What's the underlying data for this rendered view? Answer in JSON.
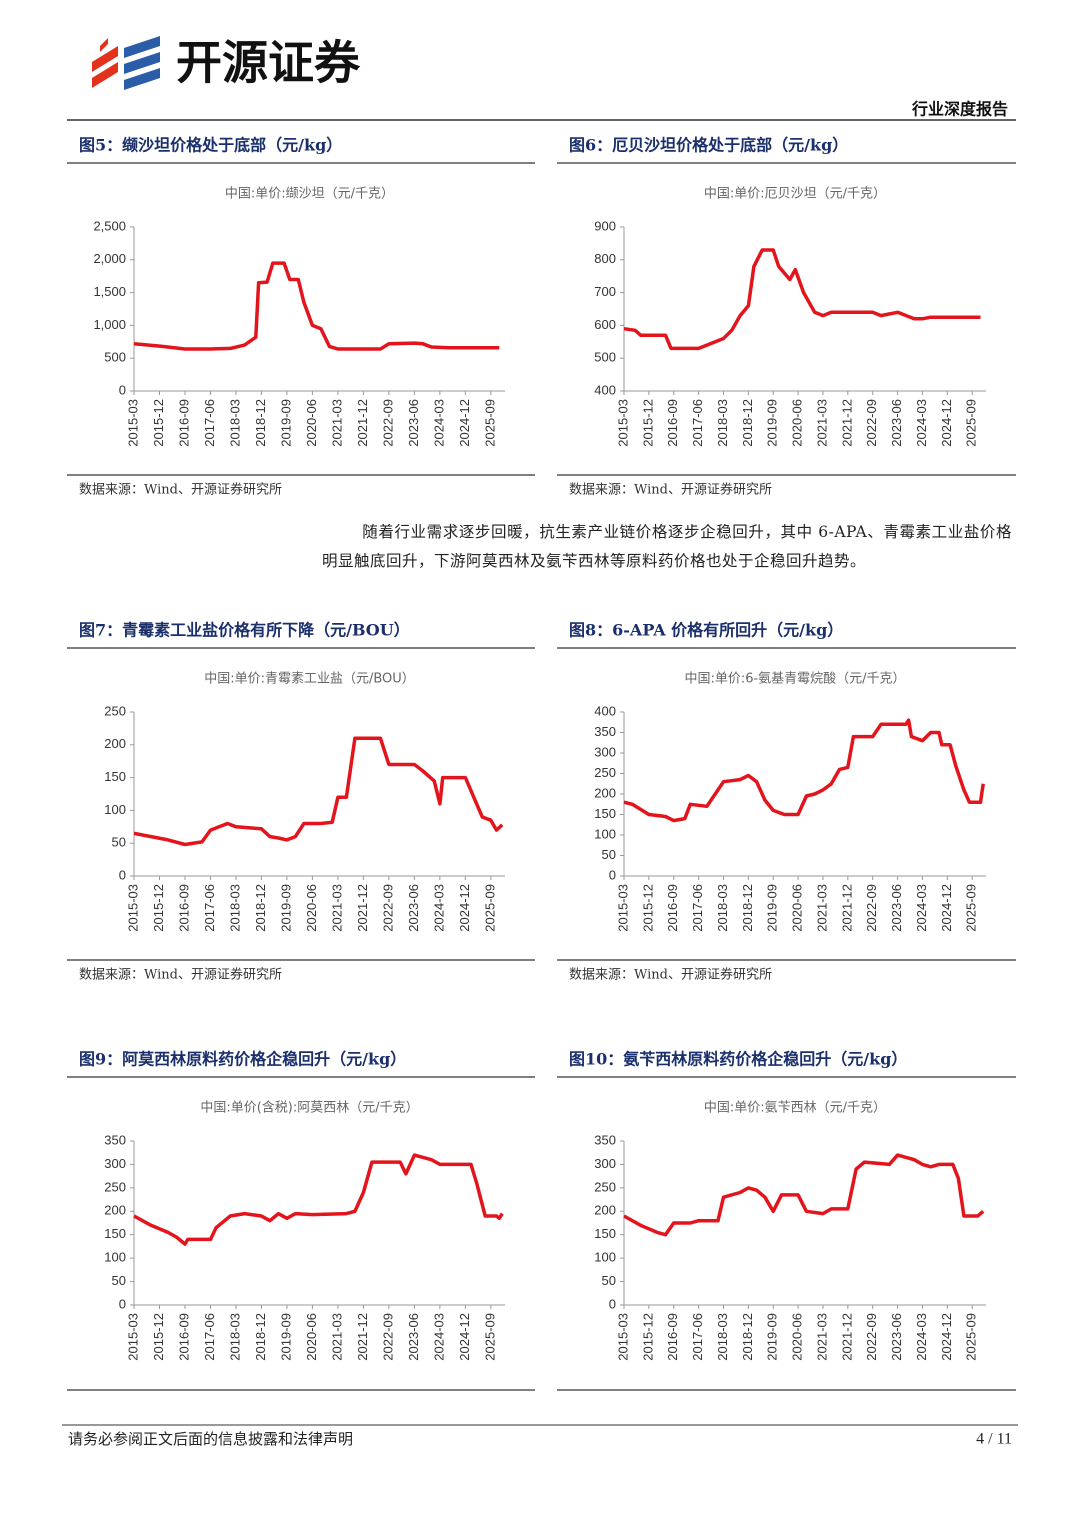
{
  "header": {
    "brand": "开源证券",
    "report_type": "行业深度报告"
  },
  "paragraph": "随着行业需求逐步回暖，抗生素产业链价格逐步企稳回升，其中 6-APA、青霉素工业盐价格明显触底回升，下游阿莫西林及氨苄西林等原料药价格也处于企稳回升趋势。",
  "footer": {
    "disclaimer": "请务必参阅正文后面的信息披露和法律声明",
    "page": "4 / 11"
  },
  "chart_data": [
    {
      "type": "line",
      "caption": "图5：缬沙坦价格处于底部（元/kg）",
      "title": "中国:单价:缬沙坦（元/千克）",
      "source": "数据来源：Wind、开源证券研究所",
      "color": "#e3141c",
      "x": [
        "2015-03",
        "2016-01",
        "2016-09",
        "2017-06",
        "2018-01",
        "2018-06",
        "2018-10",
        "2018-11",
        "2019-02",
        "2019-04",
        "2019-08",
        "2019-10",
        "2020-01",
        "2020-03",
        "2020-06",
        "2020-09",
        "2020-12",
        "2021-03",
        "2022-06",
        "2022-09",
        "2023-06",
        "2023-09",
        "2023-12",
        "2024-06",
        "2025-12"
      ],
      "values": [
        720,
        680,
        640,
        640,
        650,
        700,
        820,
        1650,
        1660,
        1950,
        1950,
        1700,
        1700,
        1350,
        1000,
        950,
        680,
        640,
        640,
        720,
        730,
        720,
        670,
        660,
        660
      ],
      "xlim": [
        "2015-03",
        "2026-02"
      ],
      "xticks": [
        "2015-03",
        "2015-12",
        "2016-09",
        "2017-06",
        "2018-03",
        "2018-12",
        "2019-09",
        "2020-06",
        "2021-03",
        "2021-12",
        "2022-09",
        "2023-06",
        "2024-03",
        "2024-12",
        "2025-09"
      ],
      "ylim": [
        0,
        2500
      ],
      "yticks": [
        0,
        500,
        {
          "value": 1000,
          "label": "1,000"
        },
        {
          "value": 1500,
          "label": "1,500"
        },
        {
          "value": 2000,
          "label": "2,000"
        },
        {
          "value": 2500,
          "label": "2,500"
        }
      ]
    },
    {
      "type": "line",
      "caption": "图6：厄贝沙坦价格处于底部（元/kg）",
      "title": "中国:单价:厄贝沙坦（元/千克）",
      "source": "数据来源：Wind、开源证券研究所",
      "color": "#e3141c",
      "x": [
        "2015-03",
        "2015-07",
        "2015-09",
        "2016-06",
        "2016-08",
        "2017-06",
        "2017-09",
        "2018-03",
        "2018-06",
        "2018-09",
        "2018-12",
        "2019-02",
        "2019-05",
        "2019-09",
        "2019-11",
        "2020-03",
        "2020-05",
        "2020-08",
        "2020-12",
        "2021-03",
        "2021-06",
        "2022-09",
        "2022-12",
        "2023-06",
        "2023-12",
        "2024-03",
        "2024-06",
        "2025-12"
      ],
      "values": [
        590,
        585,
        570,
        570,
        530,
        530,
        540,
        560,
        585,
        630,
        660,
        780,
        830,
        830,
        780,
        740,
        770,
        700,
        640,
        630,
        640,
        640,
        630,
        640,
        620,
        620,
        625,
        625
      ],
      "xlim": [
        "2015-03",
        "2026-02"
      ],
      "xticks": [
        "2015-03",
        "2015-12",
        "2016-09",
        "2017-06",
        "2018-03",
        "2018-12",
        "2019-09",
        "2020-06",
        "2021-03",
        "2021-12",
        "2022-09",
        "2023-06",
        "2024-03",
        "2024-12",
        "2025-09"
      ],
      "ylim": [
        400,
        900
      ],
      "yticks": [
        400,
        500,
        600,
        700,
        800,
        900
      ]
    },
    {
      "type": "line",
      "caption": "图7：青霉素工业盐价格有所下降（元/BOU）",
      "title": "中国:单价:青霉素工业盐（元/BOU）",
      "source": "数据来源：Wind、开源证券研究所",
      "color": "#e3141c",
      "x": [
        "2015-03",
        "2015-09",
        "2016-03",
        "2016-09",
        "2017-03",
        "2017-06",
        "2017-12",
        "2018-03",
        "2018-12",
        "2019-03",
        "2019-06",
        "2019-09",
        "2019-12",
        "2020-03",
        "2020-09",
        "2021-01",
        "2021-03",
        "2021-06",
        "2021-09",
        "2022-06",
        "2022-09",
        "2023-06",
        "2023-09",
        "2024-01",
        "2024-03",
        "2024-04",
        "2024-12",
        "2025-03",
        "2025-06",
        "2025-09",
        "2025-11",
        "2026-01"
      ],
      "values": [
        65,
        60,
        55,
        48,
        52,
        70,
        80,
        75,
        72,
        60,
        58,
        55,
        60,
        80,
        80,
        82,
        120,
        120,
        210,
        210,
        170,
        170,
        160,
        145,
        110,
        150,
        150,
        120,
        90,
        85,
        70,
        78
      ],
      "xlim": [
        "2015-03",
        "2026-02"
      ],
      "xticks": [
        "2015-03",
        "2015-12",
        "2016-09",
        "2017-06",
        "2018-03",
        "2018-12",
        "2019-09",
        "2020-06",
        "2021-03",
        "2021-12",
        "2022-09",
        "2023-06",
        "2024-03",
        "2024-12",
        "2025-09"
      ],
      "ylim": [
        0,
        250
      ],
      "yticks": [
        0,
        50,
        100,
        150,
        200,
        250
      ]
    },
    {
      "type": "line",
      "caption": "图8：6-APA 价格有所回升（元/kg）",
      "title": "中国:单价:6-氨基青霉烷酸（元/千克）",
      "source": "数据来源：Wind、开源证券研究所",
      "color": "#e3141c",
      "x": [
        "2015-03",
        "2015-06",
        "2015-12",
        "2016-06",
        "2016-09",
        "2017-01",
        "2017-03",
        "2017-09",
        "2018-01",
        "2018-03",
        "2018-09",
        "2018-12",
        "2019-03",
        "2019-06",
        "2019-09",
        "2020-01",
        "2020-06",
        "2020-09",
        "2020-12",
        "2021-03",
        "2021-06",
        "2021-09",
        "2021-12",
        "2022-02",
        "2022-09",
        "2022-12",
        "2023-09",
        "2023-10",
        "2023-11",
        "2024-03",
        "2024-06",
        "2024-09",
        "2024-10",
        "2025-01",
        "2025-03",
        "2025-06",
        "2025-08",
        "2025-12",
        "2026-01"
      ],
      "values": [
        180,
        175,
        150,
        145,
        135,
        140,
        175,
        170,
        210,
        230,
        235,
        245,
        230,
        185,
        160,
        150,
        150,
        195,
        200,
        210,
        225,
        260,
        265,
        340,
        340,
        370,
        370,
        380,
        340,
        330,
        350,
        350,
        320,
        320,
        270,
        210,
        180,
        180,
        225
      ],
      "xlim": [
        "2015-03",
        "2026-02"
      ],
      "xticks": [
        "2015-03",
        "2015-12",
        "2016-09",
        "2017-06",
        "2018-03",
        "2018-12",
        "2019-09",
        "2020-06",
        "2021-03",
        "2021-12",
        "2022-09",
        "2023-06",
        "2024-03",
        "2024-12",
        "2025-09"
      ],
      "ylim": [
        0,
        400
      ],
      "yticks": [
        0,
        50,
        100,
        150,
        200,
        250,
        300,
        350,
        400
      ]
    },
    {
      "type": "line",
      "caption": "图9：阿莫西林原料药价格企稳回升（元/kg）",
      "title": "中国:单价(含税):阿莫西林（元/千克）",
      "color": "#e3141c",
      "x": [
        "2015-03",
        "2015-09",
        "2016-03",
        "2016-06",
        "2016-09",
        "2016-10",
        "2017-06",
        "2017-08",
        "2018-01",
        "2018-06",
        "2018-12",
        "2019-03",
        "2019-06",
        "2019-09",
        "2019-12",
        "2020-06",
        "2021-06",
        "2021-09",
        "2021-12",
        "2022-03",
        "2023-01",
        "2023-03",
        "2023-06",
        "2023-12",
        "2024-03",
        "2024-06",
        "2025-02",
        "2025-04",
        "2025-07",
        "2025-11",
        "2025-12",
        "2026-01"
      ],
      "values": [
        190,
        170,
        155,
        145,
        130,
        140,
        140,
        165,
        190,
        195,
        190,
        180,
        195,
        185,
        195,
        193,
        195,
        200,
        240,
        305,
        305,
        280,
        320,
        310,
        300,
        300,
        300,
        260,
        190,
        190,
        185,
        195
      ],
      "xlim": [
        "2015-03",
        "2026-02"
      ],
      "xticks": [
        "2015-03",
        "2015-12",
        "2016-09",
        "2017-06",
        "2018-03",
        "2018-12",
        "2019-09",
        "2020-06",
        "2021-03",
        "2021-12",
        "2022-09",
        "2023-06",
        "2024-03",
        "2024-12",
        "2025-09"
      ],
      "ylim": [
        0,
        350
      ],
      "yticks": [
        0,
        50,
        100,
        150,
        200,
        250,
        300,
        350
      ]
    },
    {
      "type": "line",
      "caption": "图10：氨苄西林原料药价格企稳回升（元/kg）",
      "title": "中国:单价:氨苄西林（元/千克）",
      "color": "#e3141c",
      "x": [
        "2015-03",
        "2015-09",
        "2016-03",
        "2016-06",
        "2016-09",
        "2017-03",
        "2017-06",
        "2018-01",
        "2018-03",
        "2018-09",
        "2018-12",
        "2019-03",
        "2019-06",
        "2019-09",
        "2019-12",
        "2020-06",
        "2020-09",
        "2021-03",
        "2021-06",
        "2021-12",
        "2022-03",
        "2022-06",
        "2023-03",
        "2023-06",
        "2023-12",
        "2024-03",
        "2024-06",
        "2024-09",
        "2025-02",
        "2025-04",
        "2025-06",
        "2025-11",
        "2026-01"
      ],
      "values": [
        190,
        170,
        155,
        150,
        175,
        175,
        180,
        180,
        230,
        240,
        250,
        245,
        230,
        200,
        235,
        235,
        200,
        195,
        205,
        205,
        290,
        305,
        300,
        320,
        310,
        300,
        295,
        300,
        300,
        270,
        190,
        190,
        200
      ],
      "xlim": [
        "2015-03",
        "2026-02"
      ],
      "xticks": [
        "2015-03",
        "2015-12",
        "2016-09",
        "2017-06",
        "2018-03",
        "2018-12",
        "2019-09",
        "2020-06",
        "2021-03",
        "2021-12",
        "2022-09",
        "2023-06",
        "2024-03",
        "2024-12",
        "2025-09"
      ],
      "ylim": [
        0,
        350
      ],
      "yticks": [
        0,
        50,
        100,
        150,
        200,
        250,
        300,
        350
      ]
    }
  ]
}
